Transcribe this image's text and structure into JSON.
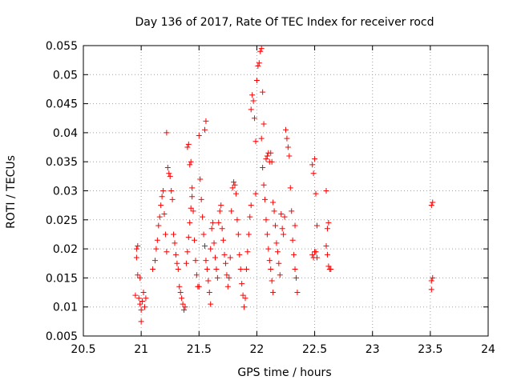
{
  "chart_data": {
    "type": "scatter",
    "title": "Day 136 of 2017, Rate Of TEC Index for receiver rocd",
    "xlabel": "GPS time / hours",
    "ylabel": "ROTI / TECUs",
    "xlim": [
      20.5,
      24
    ],
    "ylim": [
      0.005,
      0.055
    ],
    "xticks": [
      "20.5",
      "21",
      "21.5",
      "22",
      "22.5",
      "23",
      "23.5",
      "24"
    ],
    "yticks": [
      "0.005",
      "0.01",
      "0.015",
      "0.02",
      "0.025",
      "0.03",
      "0.035",
      "0.04",
      "0.045",
      "0.05",
      "0.055"
    ],
    "grid": true,
    "marker": "+",
    "marker_color": "#ff0000",
    "series": [
      {
        "name": "ROTI",
        "points": [
          [
            20.95,
            0.012
          ],
          [
            20.96,
            0.0185
          ],
          [
            20.96,
            0.02
          ],
          [
            20.97,
            0.0155
          ],
          [
            20.98,
            0.0115
          ],
          [
            20.99,
            0.0105
          ],
          [
            21.0,
            0.0095
          ],
          [
            21.0,
            0.0075
          ],
          [
            21.01,
            0.011
          ],
          [
            21.02,
            0.0125
          ],
          [
            21.03,
            0.01
          ],
          [
            21.04,
            0.0115
          ],
          [
            20.97,
            0.0205
          ],
          [
            20.99,
            0.015
          ],
          [
            21.1,
            0.0165
          ],
          [
            21.12,
            0.018
          ],
          [
            21.13,
            0.02
          ],
          [
            21.14,
            0.0215
          ],
          [
            21.15,
            0.024
          ],
          [
            21.16,
            0.0255
          ],
          [
            21.17,
            0.0275
          ],
          [
            21.18,
            0.029
          ],
          [
            21.19,
            0.03
          ],
          [
            21.2,
            0.026
          ],
          [
            21.21,
            0.0225
          ],
          [
            21.22,
            0.0195
          ],
          [
            21.22,
            0.04
          ],
          [
            21.23,
            0.034
          ],
          [
            21.24,
            0.033
          ],
          [
            21.25,
            0.0325
          ],
          [
            21.26,
            0.03
          ],
          [
            21.27,
            0.0285
          ],
          [
            21.28,
            0.0225
          ],
          [
            21.29,
            0.021
          ],
          [
            21.3,
            0.019
          ],
          [
            21.31,
            0.0175
          ],
          [
            21.32,
            0.0165
          ],
          [
            21.33,
            0.0135
          ],
          [
            21.34,
            0.0125
          ],
          [
            21.35,
            0.0115
          ],
          [
            21.36,
            0.0105
          ],
          [
            21.37,
            0.0095
          ],
          [
            21.38,
            0.01
          ],
          [
            21.39,
            0.0175
          ],
          [
            21.4,
            0.0195
          ],
          [
            21.41,
            0.022
          ],
          [
            21.42,
            0.0245
          ],
          [
            21.43,
            0.027
          ],
          [
            21.44,
            0.029
          ],
          [
            21.4,
            0.0375
          ],
          [
            21.41,
            0.038
          ],
          [
            21.42,
            0.0345
          ],
          [
            21.43,
            0.035
          ],
          [
            21.44,
            0.0305
          ],
          [
            21.45,
            0.0265
          ],
          [
            21.46,
            0.0215
          ],
          [
            21.47,
            0.018
          ],
          [
            21.48,
            0.0155
          ],
          [
            21.49,
            0.0135
          ],
          [
            21.5,
            0.0135
          ],
          [
            21.5,
            0.0395
          ],
          [
            21.51,
            0.032
          ],
          [
            21.52,
            0.0285
          ],
          [
            21.53,
            0.0255
          ],
          [
            21.54,
            0.0225
          ],
          [
            21.55,
            0.0205
          ],
          [
            21.56,
            0.018
          ],
          [
            21.57,
            0.0165
          ],
          [
            21.58,
            0.0145
          ],
          [
            21.55,
            0.0405
          ],
          [
            21.56,
            0.042
          ],
          [
            21.59,
            0.0125
          ],
          [
            21.6,
            0.0105
          ],
          [
            21.6,
            0.02
          ],
          [
            21.61,
            0.0235
          ],
          [
            21.62,
            0.0245
          ],
          [
            21.63,
            0.021
          ],
          [
            21.64,
            0.0185
          ],
          [
            21.65,
            0.0165
          ],
          [
            21.66,
            0.015
          ],
          [
            21.67,
            0.0245
          ],
          [
            21.68,
            0.0265
          ],
          [
            21.69,
            0.0275
          ],
          [
            21.7,
            0.0235
          ],
          [
            21.71,
            0.0215
          ],
          [
            21.72,
            0.019
          ],
          [
            21.73,
            0.0175
          ],
          [
            21.74,
            0.0155
          ],
          [
            21.75,
            0.0135
          ],
          [
            21.76,
            0.015
          ],
          [
            21.77,
            0.0185
          ],
          [
            21.78,
            0.0265
          ],
          [
            21.79,
            0.0305
          ],
          [
            21.8,
            0.0315
          ],
          [
            21.81,
            0.031
          ],
          [
            21.82,
            0.0295
          ],
          [
            21.83,
            0.025
          ],
          [
            21.84,
            0.0225
          ],
          [
            21.85,
            0.019
          ],
          [
            21.86,
            0.0165
          ],
          [
            21.87,
            0.014
          ],
          [
            21.88,
            0.012
          ],
          [
            21.89,
            0.01
          ],
          [
            21.9,
            0.0115
          ],
          [
            21.91,
            0.0165
          ],
          [
            21.92,
            0.0195
          ],
          [
            21.93,
            0.0225
          ],
          [
            21.94,
            0.0255
          ],
          [
            21.95,
            0.0275
          ],
          [
            21.95,
            0.044
          ],
          [
            21.96,
            0.0465
          ],
          [
            21.97,
            0.0455
          ],
          [
            21.98,
            0.0425
          ],
          [
            21.99,
            0.0385
          ],
          [
            21.99,
            0.0295
          ],
          [
            22.0,
            0.049
          ],
          [
            22.01,
            0.0515
          ],
          [
            22.02,
            0.052
          ],
          [
            22.03,
            0.054
          ],
          [
            22.04,
            0.0545
          ],
          [
            22.05,
            0.047
          ],
          [
            22.06,
            0.0415
          ],
          [
            22.04,
            0.039
          ],
          [
            22.05,
            0.034
          ],
          [
            22.06,
            0.031
          ],
          [
            22.07,
            0.0285
          ],
          [
            22.08,
            0.025
          ],
          [
            22.09,
            0.0225
          ],
          [
            22.1,
            0.02
          ],
          [
            22.11,
            0.018
          ],
          [
            22.12,
            0.0165
          ],
          [
            22.13,
            0.0145
          ],
          [
            22.14,
            0.0125
          ],
          [
            22.08,
            0.0355
          ],
          [
            22.09,
            0.036
          ],
          [
            22.1,
            0.0365
          ],
          [
            22.11,
            0.035
          ],
          [
            22.12,
            0.0365
          ],
          [
            22.13,
            0.035
          ],
          [
            22.14,
            0.028
          ],
          [
            22.15,
            0.0265
          ],
          [
            22.16,
            0.024
          ],
          [
            22.17,
            0.021
          ],
          [
            22.18,
            0.0195
          ],
          [
            22.19,
            0.0175
          ],
          [
            22.2,
            0.0155
          ],
          [
            22.21,
            0.026
          ],
          [
            22.22,
            0.0235
          ],
          [
            22.23,
            0.0225
          ],
          [
            22.24,
            0.0255
          ],
          [
            22.25,
            0.0405
          ],
          [
            22.26,
            0.039
          ],
          [
            22.27,
            0.0375
          ],
          [
            22.28,
            0.036
          ],
          [
            22.29,
            0.0305
          ],
          [
            22.3,
            0.0265
          ],
          [
            22.31,
            0.0215
          ],
          [
            22.32,
            0.019
          ],
          [
            22.33,
            0.0165
          ],
          [
            22.34,
            0.015
          ],
          [
            22.35,
            0.0125
          ],
          [
            22.33,
            0.024
          ],
          [
            22.48,
            0.0345
          ],
          [
            22.49,
            0.033
          ],
          [
            22.5,
            0.0355
          ],
          [
            22.51,
            0.0295
          ],
          [
            22.52,
            0.024
          ],
          [
            22.48,
            0.019
          ],
          [
            22.49,
            0.0185
          ],
          [
            22.5,
            0.0195
          ],
          [
            22.51,
            0.0195
          ],
          [
            22.52,
            0.0185
          ],
          [
            22.6,
            0.03
          ],
          [
            22.61,
            0.0235
          ],
          [
            22.62,
            0.0245
          ],
          [
            22.6,
            0.0205
          ],
          [
            22.61,
            0.019
          ],
          [
            22.62,
            0.017
          ],
          [
            22.63,
            0.0165
          ],
          [
            22.64,
            0.0165
          ],
          [
            23.51,
            0.0275
          ],
          [
            23.52,
            0.028
          ],
          [
            23.51,
            0.0145
          ],
          [
            23.52,
            0.015
          ],
          [
            23.51,
            0.013
          ]
        ]
      }
    ]
  }
}
